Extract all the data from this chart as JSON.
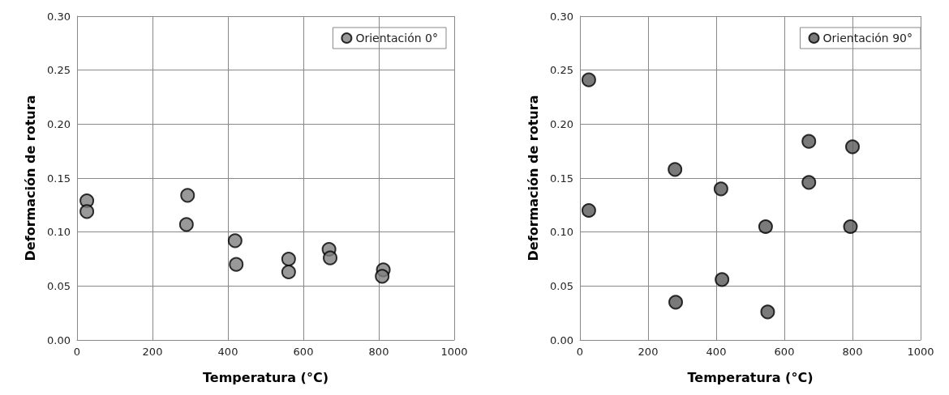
{
  "chart_data": [
    {
      "type": "scatter",
      "xlabel": "Temperatura (°C)",
      "ylabel": "Deformación de rotura",
      "series": [
        {
          "name": "Orientación 0°",
          "color": "#808080",
          "x": [
            26,
            26,
            293,
            290,
            419,
            422,
            561,
            561,
            668,
            671,
            812,
            809
          ],
          "values": [
            0.129,
            0.119,
            0.134,
            0.107,
            0.092,
            0.07,
            0.075,
            0.063,
            0.084,
            0.076,
            0.065,
            0.059
          ]
        }
      ],
      "xlim": [
        0,
        1000
      ],
      "xticks": [
        0,
        200,
        400,
        600,
        800,
        1000
      ],
      "ylim": [
        0,
        0.3
      ],
      "yticks": [
        {
          "value": 0,
          "label": "0.00"
        },
        {
          "value": 0.05,
          "label": "0.05"
        },
        {
          "value": 0.1,
          "label": "0.10"
        },
        {
          "value": 0.15,
          "label": "0.15"
        },
        {
          "value": 0.2,
          "label": "0.20"
        },
        {
          "value": 0.25,
          "label": "0.25"
        },
        {
          "value": 0.3,
          "label": "0.30"
        }
      ],
      "grid": true,
      "legend": "top right",
      "marker": "circle"
    },
    {
      "type": "scatter",
      "xlabel": "Temperatura (°C)",
      "ylabel": "Deformación de rotura",
      "series": [
        {
          "name": "Orientación 90°",
          "color": "#595959",
          "x": [
            26,
            26,
            279,
            281,
            414,
            417,
            545,
            551,
            672,
            672,
            800,
            794
          ],
          "values": [
            0.241,
            0.12,
            0.158,
            0.035,
            0.14,
            0.056,
            0.105,
            0.026,
            0.184,
            0.146,
            0.179,
            0.105
          ]
        }
      ],
      "xlim": [
        0,
        1000
      ],
      "xticks": [
        0,
        200,
        400,
        600,
        800,
        1000
      ],
      "ylim": [
        0,
        0.3
      ],
      "yticks": [
        {
          "value": 0,
          "label": "0.00"
        },
        {
          "value": 0.05,
          "label": "0.05"
        },
        {
          "value": 0.1,
          "label": "0.10"
        },
        {
          "value": 0.15,
          "label": "0.15"
        },
        {
          "value": 0.2,
          "label": "0.20"
        },
        {
          "value": 0.25,
          "label": "0.25"
        },
        {
          "value": 0.3,
          "label": "0.30"
        }
      ],
      "grid": true,
      "legend": "top right",
      "marker": "circle"
    }
  ]
}
